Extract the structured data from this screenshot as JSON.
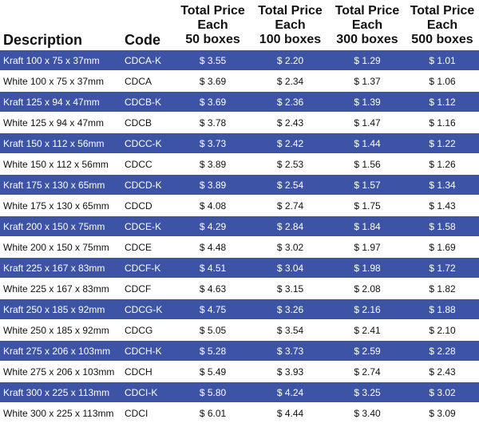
{
  "headers": {
    "description": "Description",
    "code": "Code",
    "p50": "Total Price\nEach\n50 boxes",
    "p100": "Total Price\nEach\n100 boxes",
    "p300": "Total Price\nEach\n300 boxes",
    "p500": "Total Price\nEach\n500 boxes"
  },
  "colors": {
    "band": "#3d53a6",
    "band_text": "#ffffff",
    "text": "#111111"
  },
  "rows": [
    {
      "desc": "Kraft 100 x 75 x 37mm",
      "code": "CDCA-K",
      "p50": "$ 3.55",
      "p100": "$ 2.20",
      "p300": "$ 1.29",
      "p500": "$ 1.01"
    },
    {
      "desc": "White 100 x 75 x 37mm",
      "code": "CDCA",
      "p50": "$ 3.69",
      "p100": "$ 2.34",
      "p300": "$ 1.37",
      "p500": "$ 1.06"
    },
    {
      "desc": "Kraft 125 x 94 x 47mm",
      "code": "CDCB-K",
      "p50": "$ 3.69",
      "p100": "$ 2.36",
      "p300": "$ 1.39",
      "p500": "$ 1.12"
    },
    {
      "desc": "White 125 x 94 x 47mm",
      "code": "CDCB",
      "p50": "$ 3.78",
      "p100": "$ 2.43",
      "p300": "$ 1.47",
      "p500": "$ 1.16"
    },
    {
      "desc": "Kraft 150 x 112 x 56mm",
      "code": "CDCC-K",
      "p50": "$ 3.73",
      "p100": "$ 2.42",
      "p300": "$ 1.44",
      "p500": "$ 1.22"
    },
    {
      "desc": "White 150 x 112 x 56mm",
      "code": "CDCC",
      "p50": "$ 3.89",
      "p100": "$ 2.53",
      "p300": "$ 1.56",
      "p500": "$ 1.26"
    },
    {
      "desc": "Kraft 175 x 130 x 65mm",
      "code": "CDCD-K",
      "p50": "$ 3.89",
      "p100": "$ 2.54",
      "p300": "$ 1.57",
      "p500": "$ 1.34"
    },
    {
      "desc": "White 175 x 130 x 65mm",
      "code": "CDCD",
      "p50": "$ 4.08",
      "p100": "$ 2.74",
      "p300": "$ 1.75",
      "p500": "$ 1.43"
    },
    {
      "desc": "Kraft 200 x 150 x 75mm",
      "code": "CDCE-K",
      "p50": "$ 4.29",
      "p100": "$ 2.84",
      "p300": "$ 1.84",
      "p500": "$ 1.58"
    },
    {
      "desc": "White 200 x 150 x 75mm",
      "code": "CDCE",
      "p50": "$ 4.48",
      "p100": "$ 3.02",
      "p300": "$ 1.97",
      "p500": "$ 1.69"
    },
    {
      "desc": "Kraft 225 x 167 x 83mm",
      "code": "CDCF-K",
      "p50": "$ 4.51",
      "p100": "$ 3.04",
      "p300": "$ 1.98",
      "p500": "$ 1.72"
    },
    {
      "desc": "White 225 x 167 x 83mm",
      "code": "CDCF",
      "p50": "$ 4.63",
      "p100": "$ 3.15",
      "p300": "$ 2.08",
      "p500": "$ 1.82"
    },
    {
      "desc": "Kraft 250 x 185 x 92mm",
      "code": "CDCG-K",
      "p50": "$ 4.75",
      "p100": "$ 3.26",
      "p300": "$ 2.16",
      "p500": "$ 1.88"
    },
    {
      "desc": "White 250 x 185 x 92mm",
      "code": "CDCG",
      "p50": "$ 5.05",
      "p100": "$ 3.54",
      "p300": "$ 2.41",
      "p500": "$ 2.10"
    },
    {
      "desc": "Kraft 275 x 206 x 103mm",
      "code": "CDCH-K",
      "p50": "$ 5.28",
      "p100": "$ 3.73",
      "p300": "$ 2.59",
      "p500": "$ 2.28"
    },
    {
      "desc": "White 275 x 206 x 103mm",
      "code": "CDCH",
      "p50": "$ 5.49",
      "p100": "$ 3.93",
      "p300": "$ 2.74",
      "p500": "$ 2.43"
    },
    {
      "desc": "Kraft 300 x 225 x 113mm",
      "code": "CDCI-K",
      "p50": "$ 5.80",
      "p100": "$ 4.24",
      "p300": "$ 3.25",
      "p500": "$ 3.02"
    },
    {
      "desc": "White 300 x 225 x 113mm",
      "code": "CDCI",
      "p50": "$ 6.01",
      "p100": "$ 4.44",
      "p300": "$ 3.40",
      "p500": "$ 3.09"
    }
  ]
}
